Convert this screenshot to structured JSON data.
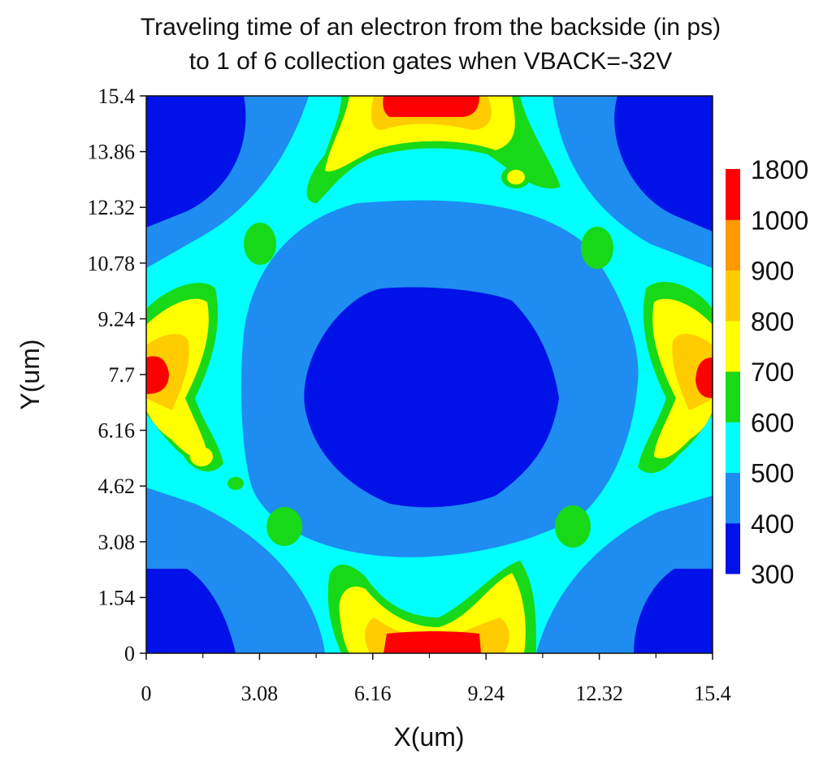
{
  "chart_data": {
    "type": "heatmap",
    "title_line1": "Traveling time of an electron from the backside (in ps)",
    "title_line2": "to 1 of 6 collection gates when VBACK=-32V",
    "xlabel": "X(um)",
    "ylabel": "Y(um)",
    "xlim": [
      0,
      15.4
    ],
    "ylim": [
      0,
      15.4
    ],
    "x_ticks": [
      "0",
      "3.08",
      "6.16",
      "9.24",
      "12.32",
      "15.4"
    ],
    "y_ticks": [
      "0",
      "1.54",
      "3.08",
      "4.62",
      "6.16",
      "7.7",
      "9.24",
      "10.78",
      "12.32",
      "13.86",
      "15.4"
    ],
    "colorbar": {
      "labels": [
        "1800",
        "1000",
        "900",
        "800",
        "700",
        "600",
        "500",
        "400",
        "300"
      ],
      "levels": [
        300,
        400,
        500,
        600,
        700,
        800,
        900,
        1000,
        1800
      ],
      "colors": [
        "#0012e8",
        "#1e8cf0",
        "#00ffff",
        "#18d918",
        "#ffff00",
        "#ffcc00",
        "#ff9900",
        "#ff0000"
      ]
    },
    "regions": [
      {
        "name": "center-pocket",
        "center": [
          7.7,
          7.0
        ],
        "max_ps": 350
      },
      {
        "name": "corner-top-left",
        "center": [
          0,
          15.4
        ],
        "max_ps": 350
      },
      {
        "name": "corner-top-right",
        "center": [
          15.4,
          15.4
        ],
        "max_ps": 350
      },
      {
        "name": "corner-bottom-left",
        "center": [
          0,
          0
        ],
        "max_ps": 350
      },
      {
        "name": "corner-bottom-right",
        "center": [
          15.4,
          0
        ],
        "max_ps": 350
      },
      {
        "name": "top-gate",
        "center": [
          7.7,
          15.3
        ],
        "max_ps": 1800
      },
      {
        "name": "bottom-gate",
        "center": [
          7.7,
          0.1
        ],
        "max_ps": 1800
      },
      {
        "name": "left-gate",
        "center": [
          0.2,
          7.7
        ],
        "max_ps": 1800
      },
      {
        "name": "right-gate",
        "center": [
          15.3,
          7.6
        ],
        "max_ps": 1800
      }
    ]
  }
}
